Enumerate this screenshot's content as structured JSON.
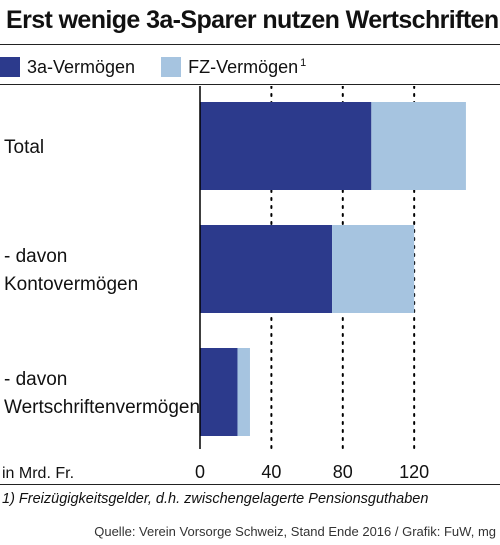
{
  "title": "Erst wenige 3a-Sparer nutzen Wertschriften",
  "footnote": "1) Freizügigkeitsgelder, d.h. zwischengelagerte Pensionsguthaben",
  "source": "Quelle: Verein Vorsorge Schweiz, Stand Ende 2016 / Grafik: FuW, mg",
  "colors": {
    "series1": "#2c3a8c",
    "series2": "#a6c4e0",
    "rule": "#222222"
  },
  "legend": [
    {
      "label": "3a-Vermögen",
      "sup": "",
      "color": "#2c3a8c"
    },
    {
      "label": "FZ-Vermögen",
      "sup": "1",
      "color": "#a6c4e0"
    }
  ],
  "chart_data": {
    "type": "bar",
    "orientation": "horizontal",
    "stacked": true,
    "categories": [
      [
        "Total"
      ],
      [
        "- davon",
        "Kontovermögen"
      ],
      [
        "- davon",
        "Wertschriftenvermögen"
      ]
    ],
    "series": [
      {
        "name": "3a-Vermögen",
        "values": [
          96,
          74,
          21
        ]
      },
      {
        "name": "FZ-Vermögen",
        "values": [
          53,
          46,
          7
        ]
      }
    ],
    "xlabel": "in Mrd. Fr.",
    "xticks": [
      0,
      40,
      80,
      120
    ],
    "xlim": [
      0,
      158
    ],
    "grid": "vertical dotted"
  }
}
